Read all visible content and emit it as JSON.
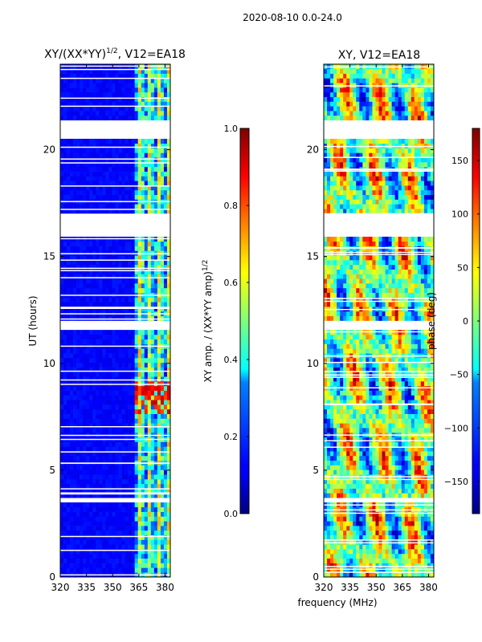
{
  "figure": {
    "suptitle": "2020-08-10 0.0-24.0",
    "xlabel": "frequency (MHz)"
  },
  "chart_data": [
    {
      "type": "heatmap",
      "title_main": "XY/(XX*YY)",
      "title_sup": "1/2",
      "title_tail": ", V12=EA18",
      "ylabel": "UT (hours)",
      "xlim": [
        320,
        383
      ],
      "ylim": [
        0,
        24
      ],
      "xticks": [
        "320",
        "335",
        "350",
        "365",
        "380"
      ],
      "xtick_values": [
        320,
        335,
        350,
        365,
        380
      ],
      "yticks": [
        "0",
        "5",
        "10",
        "15",
        "20"
      ],
      "ytick_values": [
        0,
        5,
        10,
        15,
        20
      ],
      "colorbar": {
        "label_main": "XY amp. / (XX*YY amp)",
        "label_sup": "1/2",
        "range": [
          0.0,
          1.0
        ],
        "ticks": [
          "0.0",
          "0.2",
          "0.4",
          "0.6",
          "0.8",
          "1.0"
        ],
        "tick_values": [
          0.0,
          0.2,
          0.4,
          0.6,
          0.8,
          1.0
        ]
      },
      "data_gaps_hours": [
        [
          21.3,
          20.7
        ],
        [
          17.0,
          16.1
        ],
        [
          11.9,
          11.6
        ],
        [
          3.7,
          3.5
        ]
      ],
      "active_band_mhz": [
        361,
        383
      ]
    },
    {
      "type": "heatmap",
      "title": "XY, V12=EA18",
      "xlim": [
        320,
        383
      ],
      "ylim": [
        0,
        24
      ],
      "xticks": [
        "320",
        "335",
        "350",
        "365",
        "380"
      ],
      "xtick_values": [
        320,
        335,
        350,
        365,
        380
      ],
      "yticks": [
        "0",
        "5",
        "10",
        "15",
        "20"
      ],
      "ytick_values": [
        0,
        5,
        10,
        15,
        20
      ],
      "colorbar": {
        "label": "phase (deg)",
        "range": [
          -180,
          180
        ],
        "ticks": [
          "−150",
          "−100",
          "−50",
          "0",
          "50",
          "100",
          "150"
        ],
        "tick_values": [
          -150,
          -100,
          -50,
          0,
          50,
          100,
          150
        ]
      },
      "data_gaps_hours": [
        [
          21.3,
          20.7
        ],
        [
          17.0,
          16.1
        ],
        [
          11.9,
          11.6
        ],
        [
          3.7,
          3.5
        ]
      ]
    }
  ]
}
